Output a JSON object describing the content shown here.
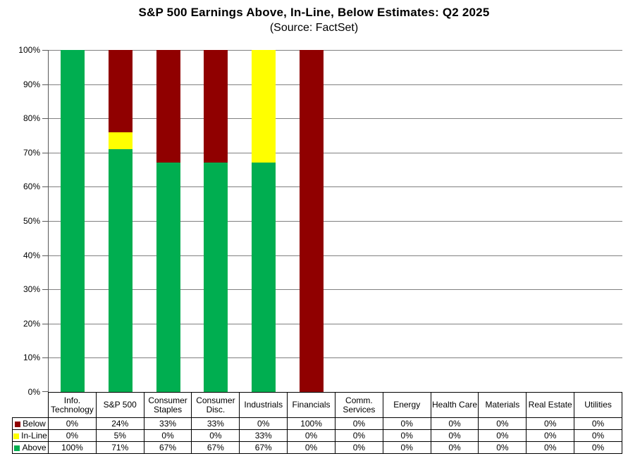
{
  "chart_data": {
    "type": "bar",
    "stacked": true,
    "title": "S&P 500 Earnings Above, In-Line, Below Estimates: Q2 2025",
    "subtitle": "(Source: FactSet)",
    "categories": [
      "Info. Technology",
      "S&P 500",
      "Consumer Staples",
      "Consumer Disc.",
      "Industrials",
      "Financials",
      "Comm. Services",
      "Energy",
      "Health Care",
      "Materials",
      "Real Estate",
      "Utilities"
    ],
    "series": [
      {
        "name": "Below",
        "color": "#900000",
        "values": [
          0,
          24,
          33,
          33,
          0,
          100,
          0,
          0,
          0,
          0,
          0,
          0
        ]
      },
      {
        "name": "In-Line",
        "color": "#FFFF00",
        "values": [
          0,
          5,
          0,
          0,
          33,
          0,
          0,
          0,
          0,
          0,
          0,
          0
        ]
      },
      {
        "name": "Above",
        "color": "#00AE50",
        "values": [
          100,
          71,
          67,
          67,
          67,
          0,
          0,
          0,
          0,
          0,
          0,
          0
        ]
      }
    ],
    "stack_order_bottom_to_top": [
      "Above",
      "In-Line",
      "Below"
    ],
    "value_suffix": "%",
    "ylim": [
      0,
      100
    ],
    "ytick_step": 10,
    "yticks": [
      "0%",
      "10%",
      "20%",
      "30%",
      "40%",
      "50%",
      "60%",
      "70%",
      "80%",
      "90%",
      "100%"
    ],
    "grid": true,
    "legend_position": "table-rows-left",
    "colors": {
      "gridline": "#808080",
      "axis": "#595959",
      "table_border": "#000000"
    }
  }
}
